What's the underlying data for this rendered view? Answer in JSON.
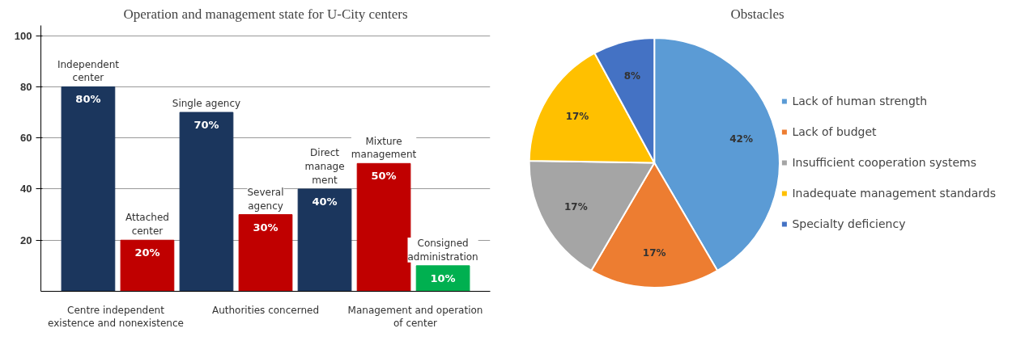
{
  "chart_data": [
    {
      "type": "bar",
      "title": "Operation and management state for U-City centers",
      "categories": [
        "Independent\ncenter",
        "Attached\ncenter",
        "Single agency",
        "Several\nagency",
        "Direct\nmanage\nment",
        "Mixture\nmanagement",
        "Consigned\nadministration"
      ],
      "values": [
        80,
        20,
        70,
        30,
        40,
        50,
        10
      ],
      "value_labels": [
        "80%",
        "20%",
        "70%",
        "30%",
        "40%",
        "50%",
        "10%"
      ],
      "colors": [
        "#1b365d",
        "#c00000",
        "#1b365d",
        "#c00000",
        "#1b365d",
        "#c00000",
        "#00b050"
      ],
      "ylim": [
        0,
        104
      ],
      "yticks": [
        20,
        40,
        60,
        80,
        100
      ],
      "grid": "y",
      "tick_labels": "y",
      "annotations": [
        "Centre independent\nexistence and nonexistence",
        "Authorities concerned",
        "Management and operation\nof center"
      ]
    },
    {
      "type": "pie",
      "title": "Obstacles",
      "categories": [
        "Lack of human strength",
        "Lack of budget",
        "Insufficient cooperation systems",
        "Inadequate management standards",
        "Specialty deficiency"
      ],
      "values": [
        42,
        17,
        17,
        17,
        8
      ],
      "value_labels": [
        "42%",
        "17%",
        "17%",
        "17%",
        "8%"
      ],
      "colors": [
        "#5b9bd5",
        "#ed7d31",
        "#a5a5a5",
        "#ffc000",
        "#4472c4"
      ],
      "legend": "right"
    }
  ]
}
